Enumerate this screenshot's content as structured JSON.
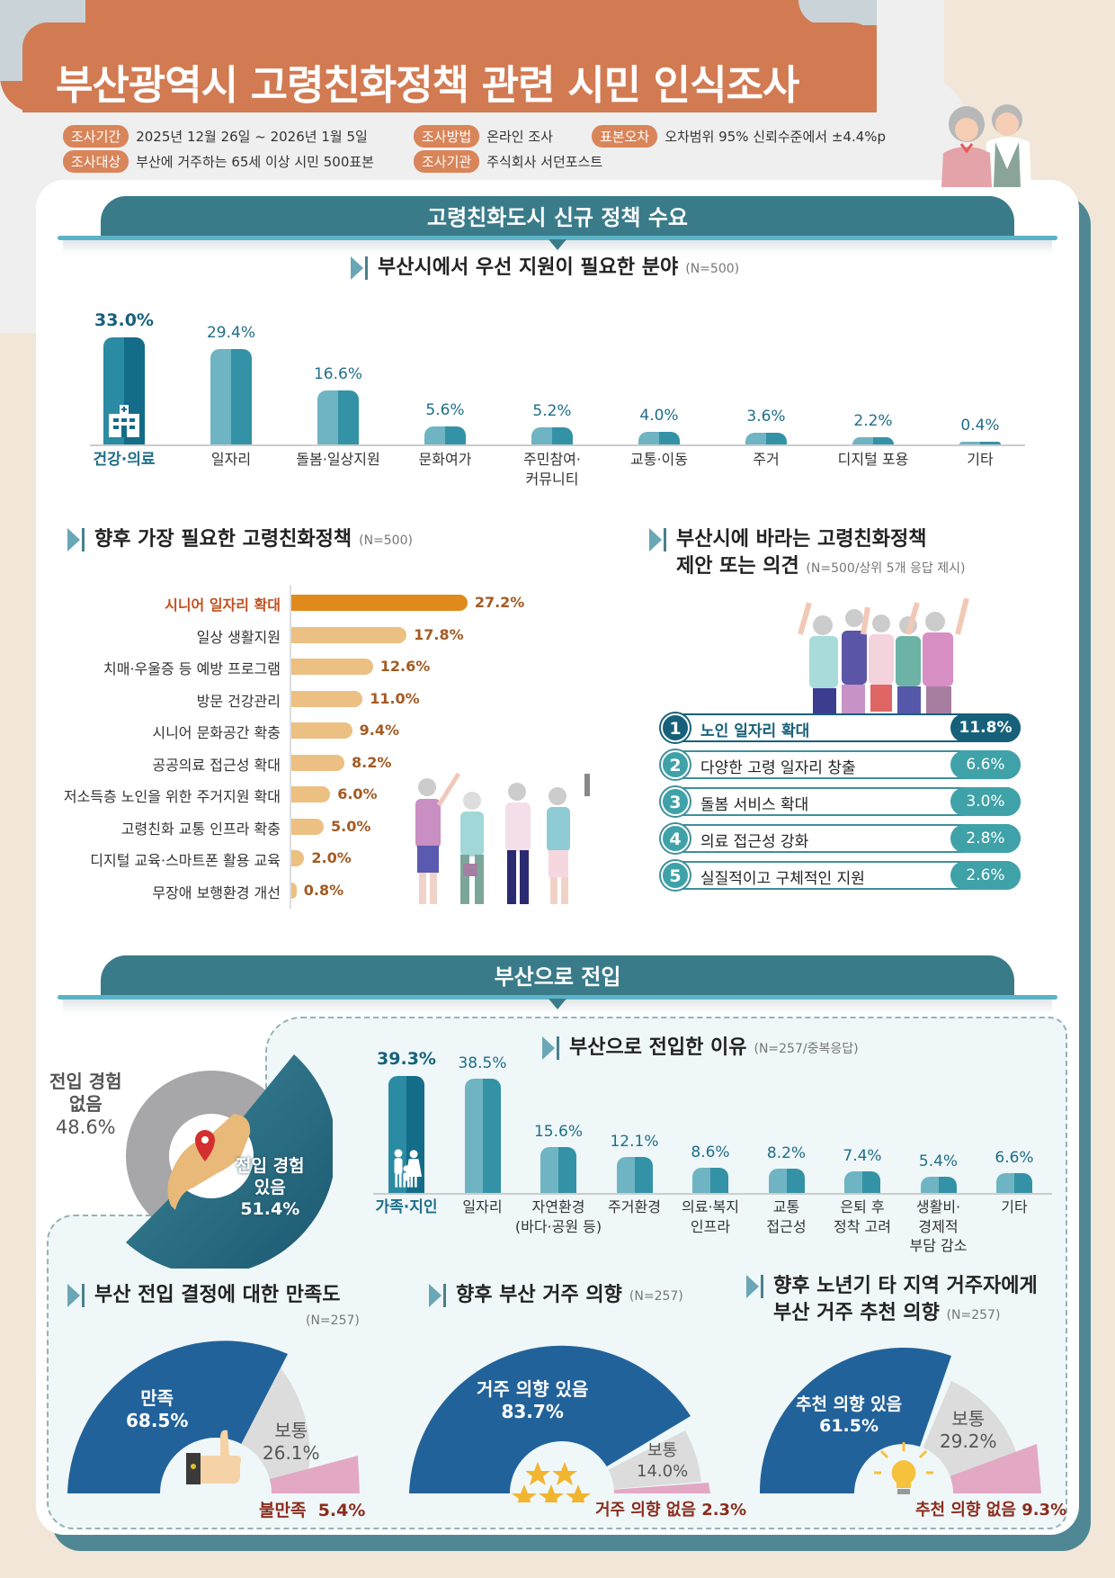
{
  "header": {
    "title": "부산광역시 고령친화정책 관련 시민 인식조사",
    "meta": [
      {
        "tag": "조사기간",
        "value": "2025년 12월 26일 ~ 2026년 1월 5일"
      },
      {
        "tag": "조사방법",
        "value": "온라인 조사"
      },
      {
        "tag": "표본오차",
        "value": "오차범위 95% 신뢰수준에서 ±4.4%p"
      },
      {
        "tag": "조사대상",
        "value": "부산에 거주하는 65세 이상 시민 500표본"
      },
      {
        "tag": "조사기관",
        "value": "주식회사 서던포스트"
      }
    ]
  },
  "sections": {
    "policy": {
      "title": "고령친화도시 신규 정책 수요"
    },
    "migration": {
      "title": "부산으로 전입"
    }
  },
  "priority": {
    "title": "부산시에서 우선 지원이 필요한 분야",
    "n": "(N=500)"
  },
  "future_policy": {
    "title": "향후 가장 필요한 고령친화정책",
    "n": "(N=500)"
  },
  "suggestions": {
    "title_line1": "부산시에 바라는 고령친화정책",
    "title_line2": "제안 또는 의견",
    "n": "(N=500/상위 5개 응답 제시)",
    "items": [
      {
        "rank": "1",
        "label": "노인 일자리 확대",
        "value": "11.8%"
      },
      {
        "rank": "2",
        "label": "다양한 고령 일자리 창출",
        "value": "6.6%"
      },
      {
        "rank": "3",
        "label": "돌봄 서비스 확대",
        "value": "3.0%"
      },
      {
        "rank": "4",
        "label": "의료 접근성 강화",
        "value": "2.8%"
      },
      {
        "rank": "5",
        "label": "실질적이고 구체적인 지원",
        "value": "2.6%"
      }
    ]
  },
  "migration_exp": {
    "no_label_1": "전입 경험",
    "no_label_2": "없음",
    "no_value": "48.6%",
    "yes_label_1": "전입 경험",
    "yes_label_2": "있음",
    "yes_value": "51.4%"
  },
  "reasons": {
    "title": "부산으로 전입한 이유",
    "n": "(N=257/중복응답)"
  },
  "satisfaction": {
    "title": "부산 전입 결정에 대한 만족도",
    "n": "(N=257)",
    "a_label": "만족",
    "a_value": "68.5%",
    "b_label": "보통",
    "b_value": "26.1%",
    "c_label": "불만족",
    "c_value": "5.4%"
  },
  "residence": {
    "title": "향후 부산 거주 의향",
    "n": "(N=257)",
    "a_label": "거주 의향 있음",
    "a_value": "83.7%",
    "b_label": "보통",
    "b_value": "14.0%",
    "c_label": "거주 의향 없음",
    "c_value": "2.3%"
  },
  "recommend": {
    "title_line1": "향후 노년기 타 지역 거주자에게",
    "title_line2": "부산 거주 추천 의향",
    "n": "(N=257)",
    "a_label": "추천 의향 있음",
    "a_value": "61.5%",
    "b_label": "보통",
    "b_value": "29.2%",
    "c_label": "추천 의향 없음",
    "c_value": "9.3%"
  },
  "colors": {
    "title_band": "#d27a52",
    "teal_dark": "#17607a",
    "teal": "#3492a6",
    "orange": "#e18a1c",
    "navy": "#22629a",
    "pink": "#e2a8c4"
  },
  "chart_data": [
    {
      "type": "bar",
      "title": "부산시에서 우선 지원이 필요한 분야 (N=500)",
      "categories": [
        "건강·의료",
        "일자리",
        "돌봄·일상지원",
        "문화여가",
        "주민참여·커뮤니티",
        "교통·이동",
        "주거",
        "디지털 포용",
        "기타"
      ],
      "values": [
        33.0,
        29.4,
        16.6,
        5.6,
        5.2,
        4.0,
        3.6,
        2.2,
        0.4
      ],
      "labels": [
        "33.0%",
        "29.4%",
        "16.6%",
        "5.6%",
        "5.2%",
        "4.0%",
        "3.6%",
        "2.2%",
        "0.4%"
      ],
      "xlabel": "",
      "ylabel": "%",
      "grid": false
    },
    {
      "type": "bar",
      "orientation": "horizontal",
      "title": "향후 가장 필요한 고령친화정책 (N=500)",
      "categories": [
        "시니어 일자리 확대",
        "일상 생활지원",
        "치매·우울증 등 예방 프로그램",
        "방문 건강관리",
        "시니어 문화공간 확충",
        "공공의료 접근성 확대",
        "저소득층 노인을 위한 주거지원 확대",
        "고령친화 교통 인프라 확충",
        "디지털 교육·스마트폰 활용 교육",
        "무장애 보행환경 개선"
      ],
      "values": [
        27.2,
        17.8,
        12.6,
        11.0,
        9.4,
        8.2,
        6.0,
        5.0,
        2.0,
        0.8
      ],
      "labels": [
        "27.2%",
        "17.8%",
        "12.6%",
        "11.0%",
        "9.4%",
        "8.2%",
        "6.0%",
        "5.0%",
        "2.0%",
        "0.8%"
      ]
    },
    {
      "type": "table",
      "title": "부산시에 바라는 고령친화정책 제안 또는 의견 (N=500/상위 5개 응답 제시)",
      "categories": [
        "노인 일자리 확대",
        "다양한 고령 일자리 창출",
        "돌봄 서비스 확대",
        "의료 접근성 강화",
        "실질적이고 구체적인 지원"
      ],
      "values": [
        11.8,
        6.6,
        3.0,
        2.8,
        2.6
      ]
    },
    {
      "type": "pie",
      "title": "부산 전입 경험",
      "categories": [
        "전입 경험 없음",
        "전입 경험 있음"
      ],
      "values": [
        48.6,
        51.4
      ]
    },
    {
      "type": "bar",
      "title": "부산으로 전입한 이유 (N=257/중복응답)",
      "categories": [
        "가족·지인",
        "일자리",
        "자연환경(바다·공원 등)",
        "주거환경",
        "의료·복지 인프라",
        "교통 접근성",
        "은퇴 후 정착 고려",
        "생활비·경제적 부담 감소",
        "기타"
      ],
      "values": [
        39.3,
        38.5,
        15.6,
        12.1,
        8.6,
        8.2,
        7.4,
        5.4,
        6.6
      ],
      "labels": [
        "39.3%",
        "38.5%",
        "15.6%",
        "12.1%",
        "8.6%",
        "8.2%",
        "7.4%",
        "5.4%",
        "6.6%"
      ]
    },
    {
      "type": "pie",
      "title": "부산 전입 결정에 대한 만족도 (N=257)",
      "categories": [
        "만족",
        "보통",
        "불만족"
      ],
      "values": [
        68.5,
        26.1,
        5.4
      ]
    },
    {
      "type": "pie",
      "title": "향후 부산 거주 의향 (N=257)",
      "categories": [
        "거주 의향 있음",
        "보통",
        "거주 의향 없음"
      ],
      "values": [
        83.7,
        14.0,
        2.3
      ]
    },
    {
      "type": "pie",
      "title": "향후 노년기 타 지역 거주자에게 부산 거주 추천 의향 (N=257)",
      "categories": [
        "추천 의향 있음",
        "보통",
        "추천 의향 없음"
      ],
      "values": [
        61.5,
        29.2,
        9.3
      ]
    }
  ]
}
